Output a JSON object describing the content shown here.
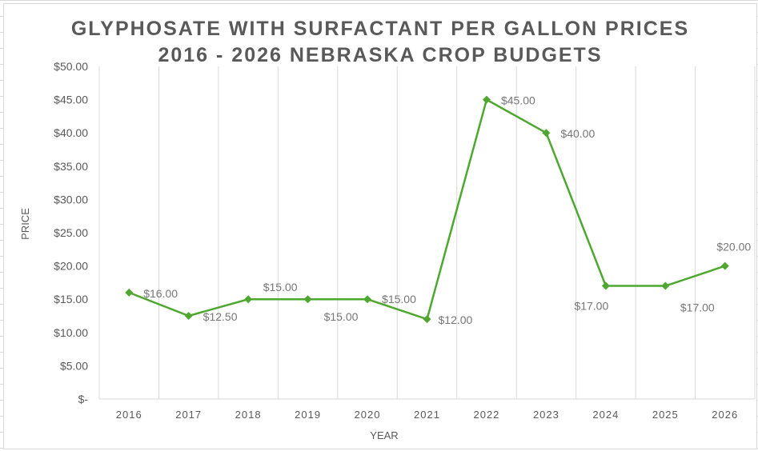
{
  "chart_data": {
    "type": "line",
    "title": [
      "GLYPHOSATE WITH SURFACTANT PER GALLON PRICES",
      "2016 - 2026 NEBRASKA CROP BUDGETS"
    ],
    "xlabel": "YEAR",
    "ylabel": "PRICE",
    "categories": [
      "2016",
      "2017",
      "2018",
      "2019",
      "2020",
      "2021",
      "2022",
      "2023",
      "2024",
      "2025",
      "2026"
    ],
    "values": [
      16,
      12.5,
      15,
      15,
      15,
      12,
      45,
      40,
      17,
      17,
      20
    ],
    "data_labels": [
      "$16.00",
      "$12.50",
      "$15.00",
      "$15.00",
      "$15.00",
      "$12.00",
      "$45.00",
      "$40.00",
      "$17.00",
      "$17.00",
      "$20.00"
    ],
    "ylim": [
      0,
      50
    ],
    "yticks": [
      "$-",
      "$5.00",
      "$10.00",
      "$15.00",
      "$20.00",
      "$25.00",
      "$30.00",
      "$35.00",
      "$40.00",
      "$45.00",
      "$50.00"
    ],
    "grid": "vertical",
    "legend": "none",
    "marker": "diamond",
    "color": "#4ea72e"
  }
}
